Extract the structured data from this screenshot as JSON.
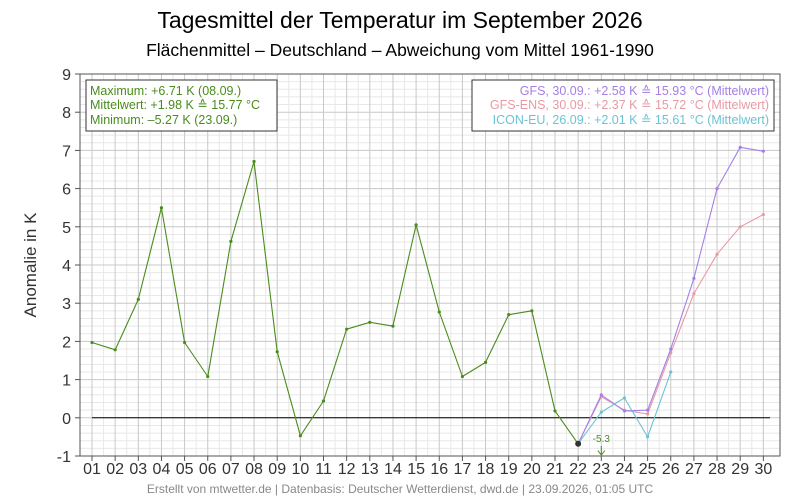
{
  "title": "Tagesmittel der Temperatur im September 2026",
  "subtitle": "Flächenmittel – Deutschland – Abweichung vom Mittel 1961-1990",
  "footer": "Erstellt von mtwetter.de | Datenbasis: Deutscher Wetterdienst, dwd.de | 23.09.2026, 01:05 UTC",
  "colors": {
    "observed": "#4a8c1c",
    "gfs": "#a57fe6",
    "gfs_ens": "#e89aa4",
    "icon_eu": "#6cc3d6",
    "zero_line": "#000000",
    "grid_major": "#c8c8c8",
    "grid_minor": "#e8e8e8",
    "marker": "#333333"
  },
  "stats": {
    "max": "Maximum: +6.71 K  (08.09.)",
    "mean": "Mittelwert: +1.98 K  ≙  15.77 °C",
    "min": "Minimum:  –5.27 K  (23.09.)"
  },
  "legend": {
    "gfs": "GFS, 30.09.: +2.58 K  ≙  15.93 °C (Mittelwert)",
    "gfs_ens": "GFS-ENS, 30.09.: +2.37 K  ≙  15.72 °C (Mittelwert)",
    "icon_eu": "ICON-EU, 26.09.: +2.01 K  ≙  15.61 °C (Mittelwert)"
  },
  "min_arrow_label": "-5.3",
  "chart_data": {
    "type": "line",
    "ylabel": "Anomalie in K",
    "xlabel": "",
    "ylim": [
      -1,
      9
    ],
    "yticks": [
      -1,
      0,
      1,
      2,
      3,
      4,
      5,
      6,
      7,
      8,
      9
    ],
    "x_tick_labels": [
      "01",
      "02",
      "03",
      "04",
      "05",
      "06",
      "07",
      "08",
      "09",
      "10",
      "11",
      "12",
      "13",
      "14",
      "15",
      "16",
      "17",
      "18",
      "19",
      "20",
      "21",
      "22",
      "23",
      "24",
      "25",
      "26",
      "27",
      "28",
      "29",
      "30"
    ],
    "series": [
      {
        "key": "observed",
        "x": [
          1,
          2,
          3,
          4,
          5,
          6,
          7,
          8,
          9,
          10,
          11,
          12,
          13,
          14,
          15,
          16,
          17,
          18,
          19,
          20,
          21,
          22
        ],
        "values": [
          1.97,
          1.78,
          3.1,
          5.5,
          1.97,
          1.08,
          4.62,
          6.71,
          1.73,
          -0.47,
          0.44,
          2.32,
          2.5,
          2.4,
          5.05,
          2.77,
          1.08,
          1.45,
          2.7,
          2.8,
          0.18,
          -0.68
        ]
      },
      {
        "key": "gfs",
        "x": [
          22,
          23,
          24,
          25,
          26,
          27,
          28,
          29,
          30
        ],
        "values": [
          -0.68,
          0.6,
          0.18,
          0.2,
          1.8,
          3.65,
          6.0,
          7.08,
          6.98
        ]
      },
      {
        "key": "gfs_ens",
        "x": [
          22,
          23,
          24,
          25,
          26,
          27,
          28,
          29,
          30
        ],
        "values": [
          -0.68,
          0.55,
          0.2,
          0.1,
          1.7,
          3.25,
          4.28,
          5.0,
          5.32
        ]
      },
      {
        "key": "icon_eu",
        "x": [
          22,
          23,
          24,
          25,
          26
        ],
        "values": [
          -0.68,
          0.15,
          0.52,
          -0.5,
          1.2
        ]
      }
    ],
    "current_point": {
      "x": 22,
      "y": -0.68
    },
    "min_marker": {
      "x": 23,
      "y": -5.27
    },
    "grid": true,
    "zero_line": true
  }
}
